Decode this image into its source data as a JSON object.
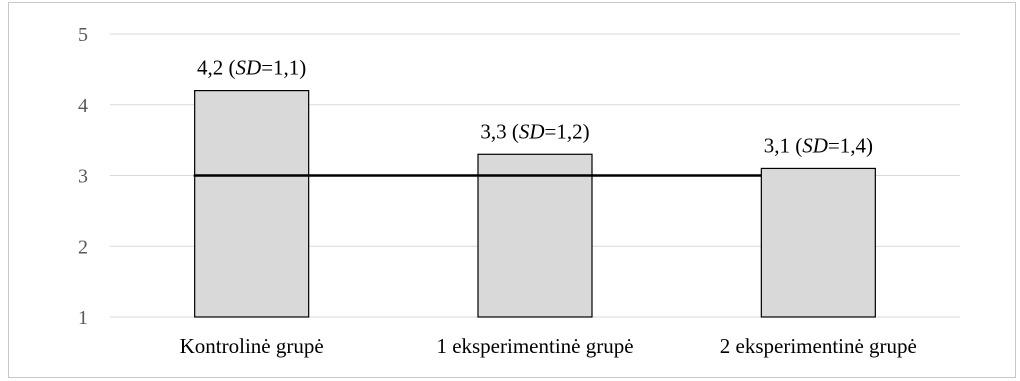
{
  "chart_data": {
    "type": "bar",
    "categories": [
      "Kontrolinė grupė",
      "1 eksperimentinė grupė",
      "2 eksperimentinė grupė"
    ],
    "values": [
      4.2,
      3.3,
      3.1
    ],
    "sd": [
      1.1,
      1.2,
      1.4
    ],
    "data_labels": [
      {
        "pre": "4,2 (",
        "sd_abbr": "SD",
        "post": "=1,1)"
      },
      {
        "pre": "3,3 (",
        "sd_abbr": "SD",
        "post": "=1,2)"
      },
      {
        "pre": "3,1 (",
        "sd_abbr": "SD",
        "post": "=1,4)"
      }
    ],
    "reference_line": {
      "value": 3,
      "from_category": 0,
      "to_category": 2
    },
    "ylim": [
      1,
      5
    ],
    "yticks": [
      "1",
      "2",
      "3",
      "4",
      "5"
    ],
    "grid": true,
    "title": "",
    "xlabel": "",
    "ylabel": "",
    "colors": {
      "bar_fill": "#d9d9d9",
      "bar_stroke": "#000000",
      "grid": "#d9d9d9",
      "reference_line": "#000000"
    }
  }
}
